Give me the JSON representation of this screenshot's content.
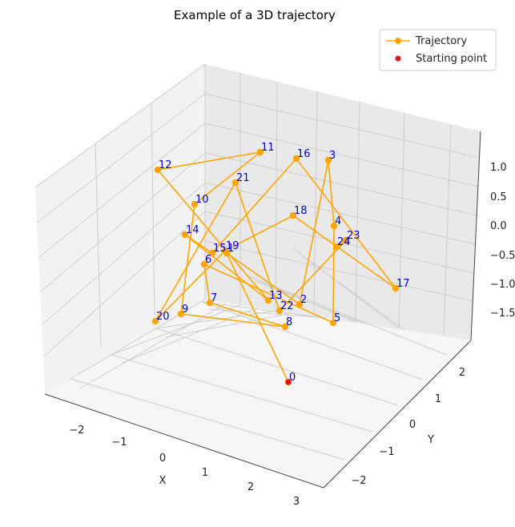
{
  "chart_data": {
    "type": "line",
    "title": "Example of a 3D trajectory",
    "xlabel": "X",
    "ylabel": "Y",
    "zlabel": "",
    "x_ticks": [
      "−2",
      "−1",
      "0",
      "1",
      "2",
      "3"
    ],
    "y_ticks": [
      "−2",
      "−1",
      "0",
      "1",
      "2"
    ],
    "z_ticks": [
      "1.0",
      "0.5",
      "0.0",
      "−0.5",
      "−1.0",
      "−1.5"
    ],
    "grid": true,
    "legend": {
      "placement": "top-right",
      "entries": [
        "Trajectory",
        "Starting point"
      ]
    },
    "colors": {
      "trajectory": "#FFA500",
      "start": "#E81010",
      "point_label": "#0000CC"
    },
    "series": [
      {
        "name": "Trajectory",
        "points": [
          {
            "label": "0"
          },
          {
            "label": "1"
          },
          {
            "label": "2"
          },
          {
            "label": "3"
          },
          {
            "label": "4"
          },
          {
            "label": "5"
          },
          {
            "label": "6"
          },
          {
            "label": "7"
          },
          {
            "label": "8"
          },
          {
            "label": "9"
          },
          {
            "label": "10"
          },
          {
            "label": "11"
          },
          {
            "label": "12"
          },
          {
            "label": "13"
          },
          {
            "label": "14"
          },
          {
            "label": "15"
          },
          {
            "label": "16"
          },
          {
            "label": "17"
          },
          {
            "label": "18"
          },
          {
            "label": "19"
          },
          {
            "label": "20"
          },
          {
            "label": "21"
          },
          {
            "label": "22"
          },
          {
            "label": "23"
          },
          {
            "label": "24"
          }
        ]
      },
      {
        "name": "Starting point",
        "points": [
          {
            "label": "0"
          }
        ]
      }
    ]
  }
}
